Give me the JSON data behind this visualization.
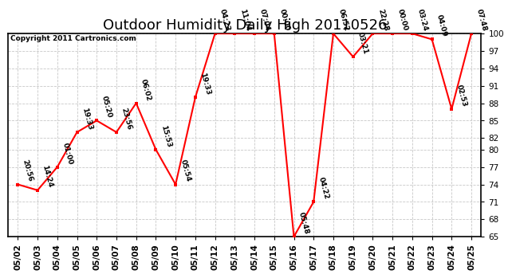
{
  "title": "Outdoor Humidity Daily High 20110526",
  "copyright": "Copyright 2011 Cartronics.com",
  "ylim": [
    65,
    100
  ],
  "yticks": [
    65,
    68,
    71,
    74,
    77,
    80,
    82,
    85,
    88,
    91,
    94,
    97,
    100
  ],
  "background_color": "#ffffff",
  "grid_color": "#c8c8c8",
  "line_color": "#ff0000",
  "marker_color": "#ff0000",
  "data_points": [
    {
      "date": "05/02",
      "time": "20:56",
      "value": 74
    },
    {
      "date": "05/03",
      "time": "14:24",
      "value": 73
    },
    {
      "date": "05/04",
      "time": "01:00",
      "value": 77
    },
    {
      "date": "05/05",
      "time": "19:33",
      "value": 83
    },
    {
      "date": "05/06",
      "time": "05:20",
      "value": 85
    },
    {
      "date": "05/07",
      "time": "23:56",
      "value": 83
    },
    {
      "date": "05/08",
      "time": "06:02",
      "value": 88
    },
    {
      "date": "05/09",
      "time": "15:53",
      "value": 80
    },
    {
      "date": "05/10",
      "time": "05:54",
      "value": 74
    },
    {
      "date": "05/11",
      "time": "19:33",
      "value": 89
    },
    {
      "date": "05/12",
      "time": "04:23",
      "value": 100
    },
    {
      "date": "05/13",
      "time": "11:04",
      "value": 100
    },
    {
      "date": "05/14",
      "time": "07:04",
      "value": 100
    },
    {
      "date": "05/15",
      "time": "00:00",
      "value": 100
    },
    {
      "date": "05/16",
      "time": "05:48",
      "value": 65
    },
    {
      "date": "05/17",
      "time": "04:22",
      "value": 71
    },
    {
      "date": "05/18",
      "time": "06:52",
      "value": 100
    },
    {
      "date": "05/19",
      "time": "03:21",
      "value": 96
    },
    {
      "date": "05/20",
      "time": "22:28",
      "value": 100
    },
    {
      "date": "05/21",
      "time": "00:00",
      "value": 100
    },
    {
      "date": "05/22",
      "time": "03:24",
      "value": 100
    },
    {
      "date": "05/23",
      "time": "04:09",
      "value": 99
    },
    {
      "date": "05/24",
      "time": "02:53",
      "value": 87
    },
    {
      "date": "05/25",
      "time": "07:48",
      "value": 100
    }
  ],
  "title_fontsize": 13,
  "tick_fontsize": 7.5,
  "annot_fontsize": 6.5,
  "copyright_fontsize": 6.5
}
